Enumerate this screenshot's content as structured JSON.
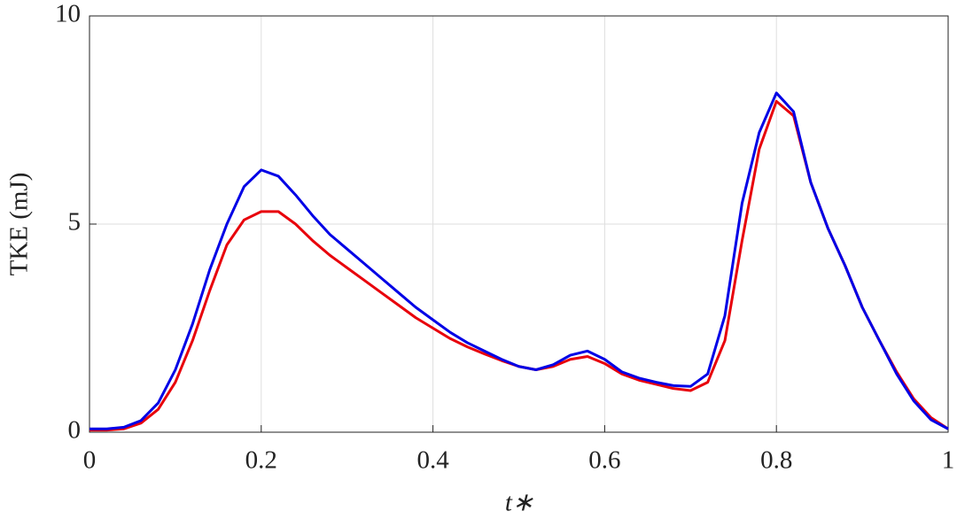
{
  "chart_data": {
    "type": "line",
    "xlabel": "t∗",
    "ylabel": "TKE (mJ)",
    "x": [
      0,
      0.02,
      0.04,
      0.06,
      0.08,
      0.1,
      0.12,
      0.14,
      0.16,
      0.18,
      0.2,
      0.22,
      0.24,
      0.26,
      0.28,
      0.3,
      0.32,
      0.34,
      0.36,
      0.38,
      0.4,
      0.42,
      0.44,
      0.46,
      0.48,
      0.5,
      0.52,
      0.54,
      0.56,
      0.58,
      0.6,
      0.62,
      0.64,
      0.66,
      0.68,
      0.7,
      0.72,
      0.74,
      0.76,
      0.78,
      0.8,
      0.82,
      0.84,
      0.86,
      0.88,
      0.9,
      0.92,
      0.94,
      0.96,
      0.98,
      1
    ],
    "series": [
      {
        "color": "#e8000b",
        "values": [
          0.05,
          0.05,
          0.08,
          0.22,
          0.55,
          1.2,
          2.2,
          3.4,
          4.5,
          5.1,
          5.3,
          5.3,
          5.0,
          4.6,
          4.25,
          3.95,
          3.65,
          3.35,
          3.05,
          2.75,
          2.5,
          2.25,
          2.05,
          1.88,
          1.72,
          1.58,
          1.5,
          1.58,
          1.75,
          1.82,
          1.65,
          1.4,
          1.25,
          1.15,
          1.05,
          1.0,
          1.2,
          2.2,
          4.6,
          6.8,
          7.95,
          7.6,
          6.0,
          4.9,
          4.0,
          3.0,
          2.2,
          1.45,
          0.8,
          0.35,
          0.08
        ]
      },
      {
        "color": "#0000e6",
        "values": [
          0.08,
          0.08,
          0.12,
          0.28,
          0.7,
          1.5,
          2.6,
          3.9,
          5.0,
          5.9,
          6.3,
          6.15,
          5.7,
          5.2,
          4.75,
          4.4,
          4.05,
          3.7,
          3.35,
          3.0,
          2.7,
          2.4,
          2.15,
          1.95,
          1.75,
          1.58,
          1.5,
          1.62,
          1.85,
          1.95,
          1.75,
          1.45,
          1.3,
          1.2,
          1.12,
          1.1,
          1.4,
          2.8,
          5.5,
          7.2,
          8.15,
          7.7,
          6.0,
          4.9,
          4.0,
          3.0,
          2.2,
          1.4,
          0.75,
          0.3,
          0.08
        ]
      }
    ],
    "xlim": [
      0,
      1
    ],
    "xticks": [
      0,
      0.2,
      0.4,
      0.6,
      0.8,
      1
    ],
    "ylim": [
      0,
      10
    ],
    "yticks": [
      0,
      5,
      10
    ],
    "grid": true
  }
}
